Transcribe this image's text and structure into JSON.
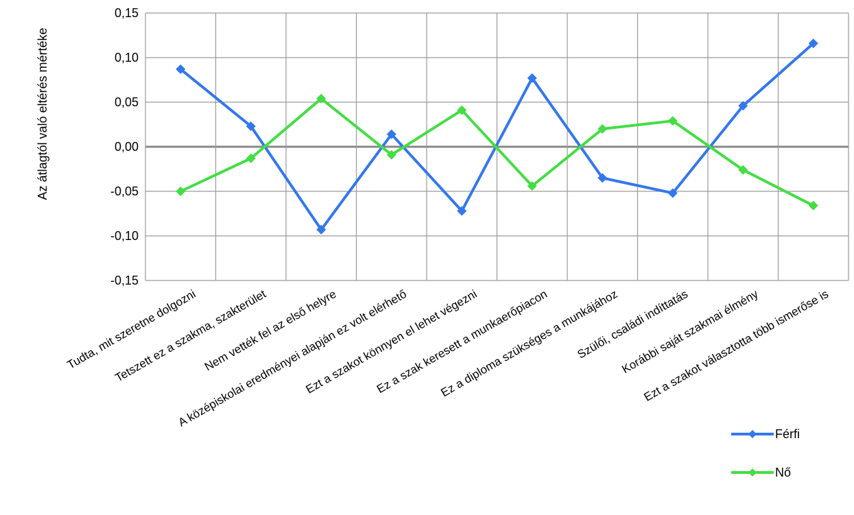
{
  "chart_data": {
    "type": "line",
    "ylabel": "Az átlagtól való eltérés mértéke",
    "ylim": [
      -0.15,
      0.15
    ],
    "yticks": [
      0.15,
      0.1,
      0.05,
      0.0,
      -0.05,
      -0.1,
      -0.15
    ],
    "ytick_labels": [
      "0,15",
      "0,10",
      "0,05",
      "0,00",
      "-0,05",
      "-0,10",
      "-0,15"
    ],
    "grid": true,
    "legend_position": "bottom-right",
    "categories": [
      "Tudta, mit szeretne dolgozni",
      "Tetszett ez a szakma, szakterület",
      "Nem vették fel az első helyre",
      "A középiskolai eredményei alapján ez volt elérhető",
      "Ezt a szakot könnyen el lehet végezni",
      "Ez a szak keresett a munkaerőpiacon",
      "Ez a diploma szükséges a munkájához",
      "Szülői, családi indíttatás",
      "Korábbi saját szakmai élmény",
      "Ezt a szakot választotta több ismerőse is"
    ],
    "series": [
      {
        "name": "Férfi",
        "color": "#3377ee",
        "values": [
          0.087,
          0.023,
          -0.093,
          0.014,
          -0.072,
          0.077,
          -0.035,
          -0.052,
          0.046,
          0.116
        ]
      },
      {
        "name": "Nő",
        "color": "#44dd44",
        "values": [
          -0.05,
          -0.013,
          0.054,
          -0.009,
          0.041,
          -0.044,
          0.02,
          0.029,
          -0.026,
          -0.066
        ]
      }
    ]
  }
}
